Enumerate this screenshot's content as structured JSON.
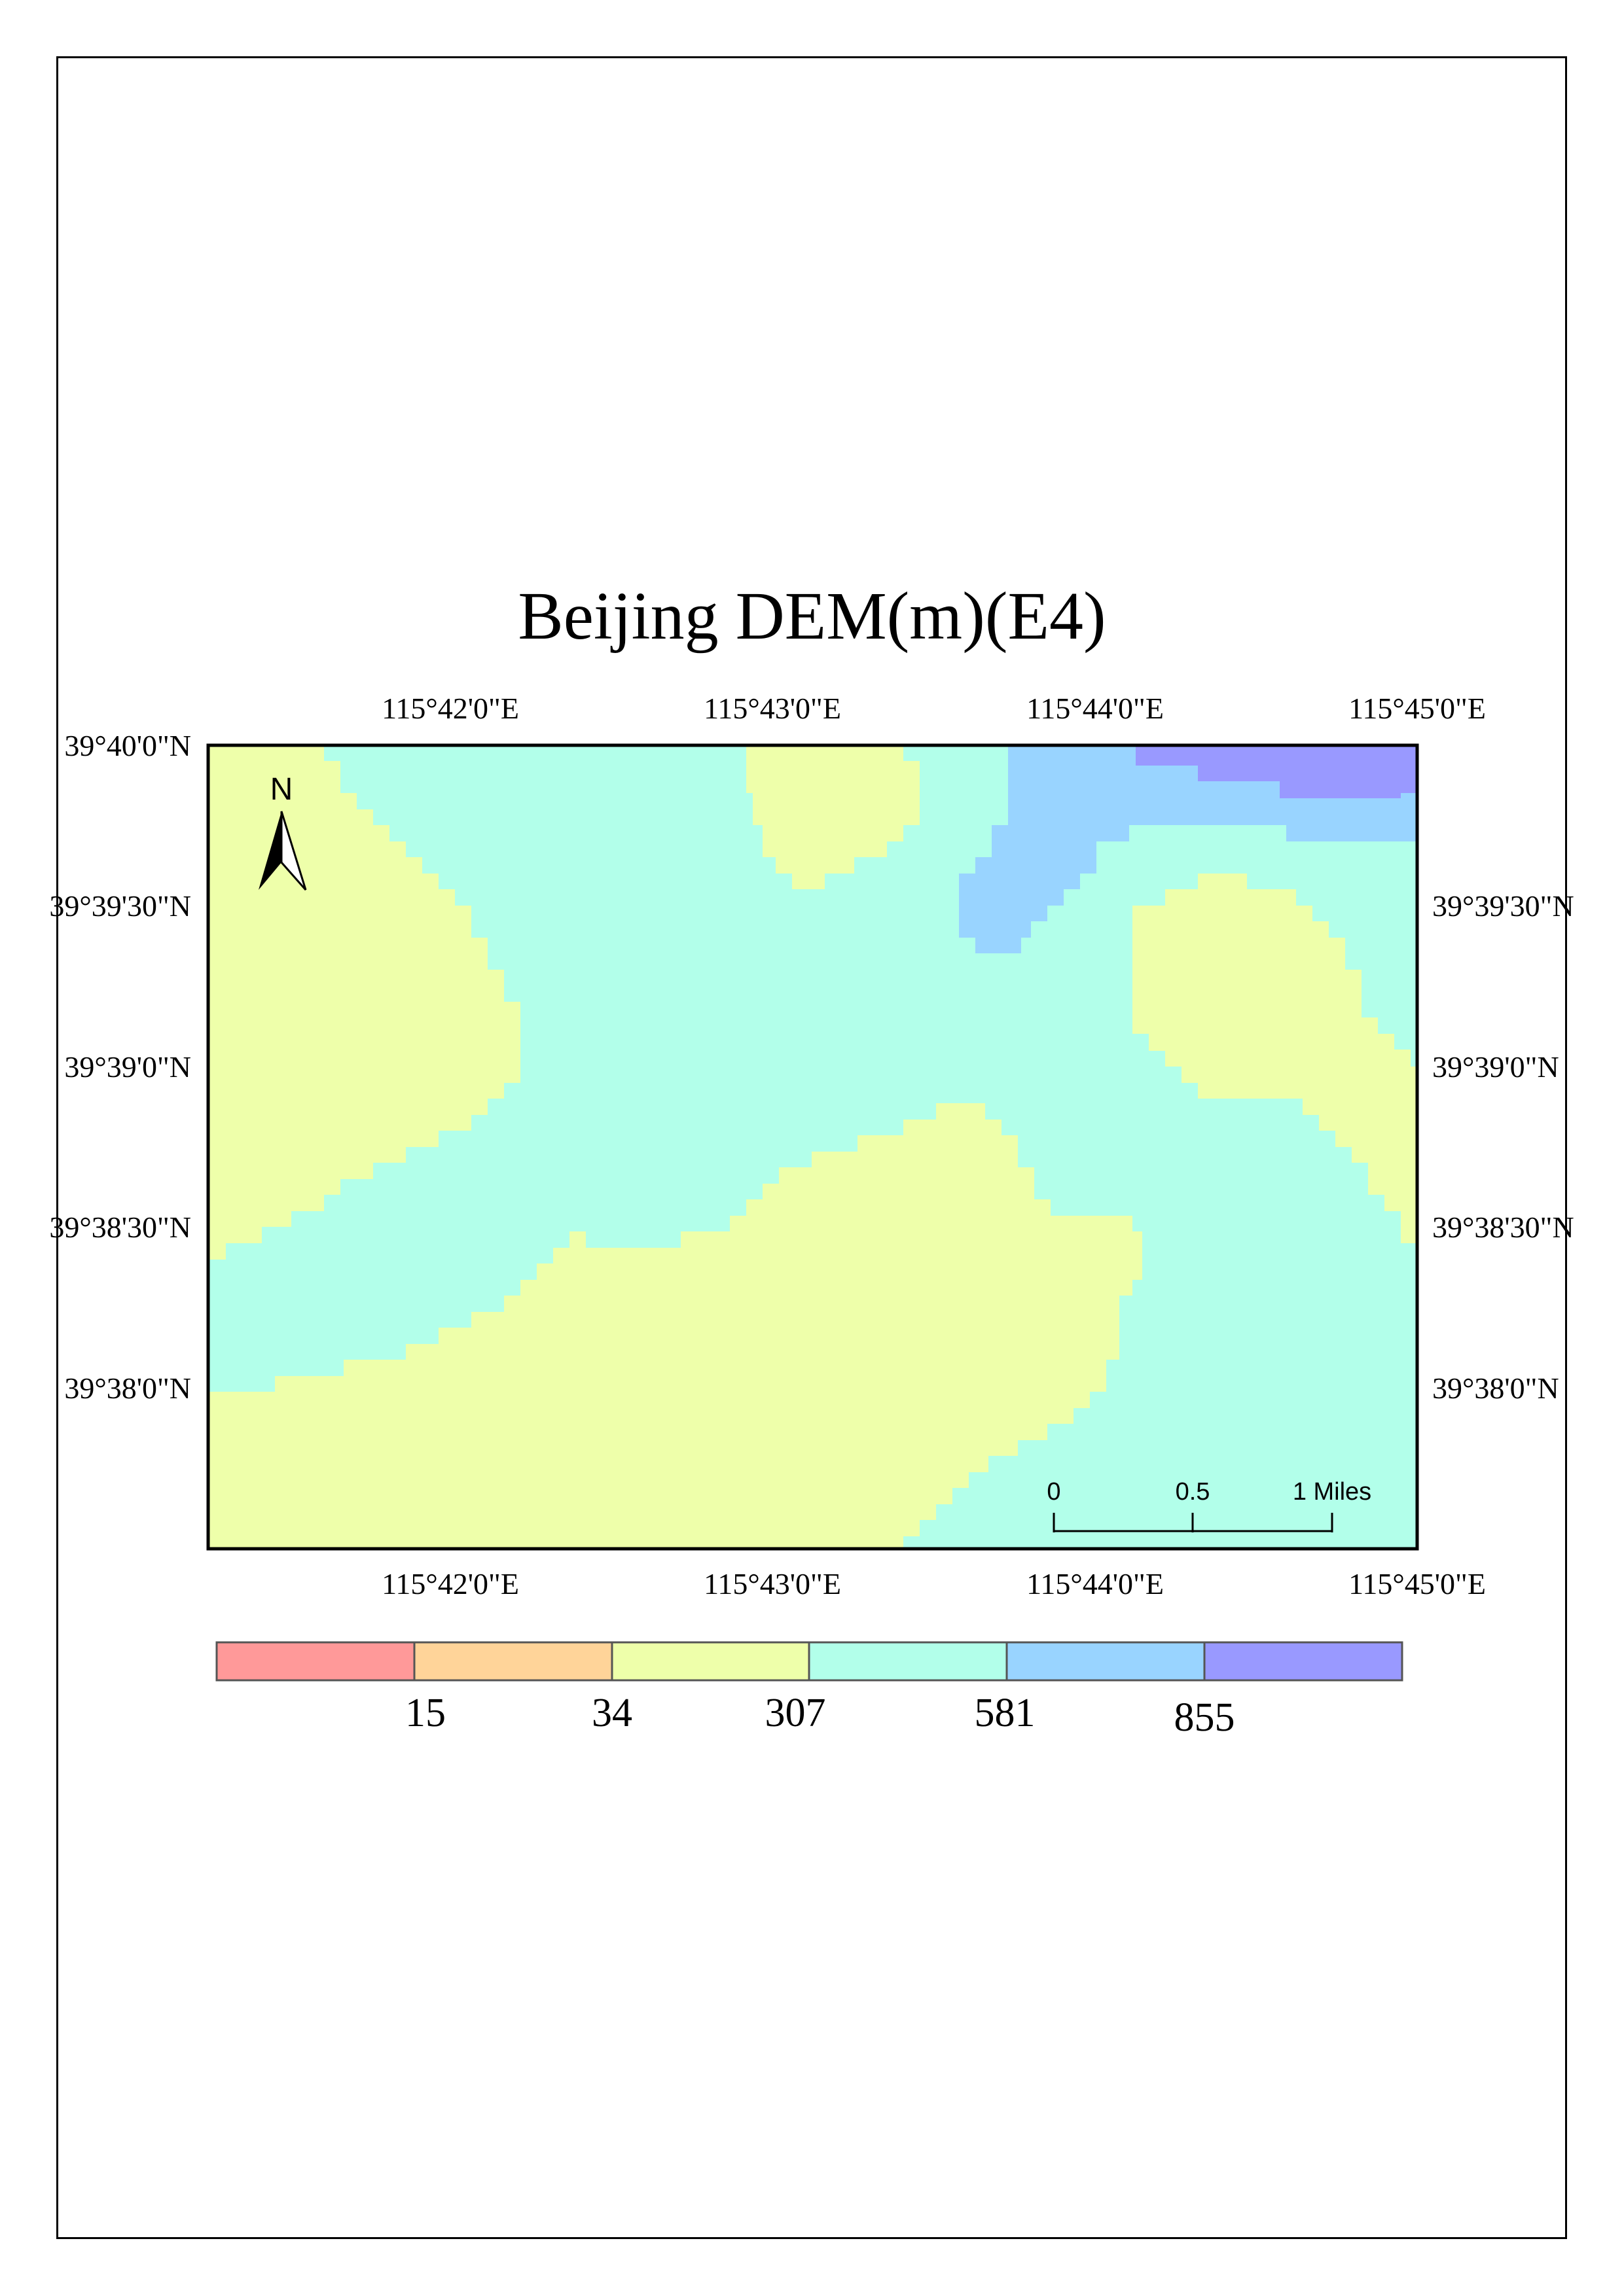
{
  "title": "Beijing DEM(m)(E4)",
  "top_longitudes": [
    "115°42'0\"E",
    "115°43'0\"E",
    "115°44'0\"E",
    "115°45'0\"E"
  ],
  "bottom_longitudes": [
    "115°42'0\"E",
    "115°43'0\"E",
    "115°44'0\"E",
    "115°45'0\"E"
  ],
  "left_latitudes": [
    "39°40'0\"N",
    "39°39'30\"N",
    "39°39'0\"N",
    "39°38'30\"N",
    "39°38'0\"N"
  ],
  "right_latitudes": [
    "39°39'30\"N",
    "39°39'0\"N",
    "39°38'30\"N",
    "39°38'0\"N"
  ],
  "north_arrow": {
    "label": "N",
    "icon": "north-arrow-icon"
  },
  "scale_bar": {
    "labels": [
      "0",
      "0.5",
      "1 Miles"
    ]
  },
  "legend": {
    "colors": [
      "#ff9999",
      "#ffd499",
      "#eeffaa",
      "#b2ffea",
      "#99d4ff",
      "#9999ff"
    ],
    "breaks": [
      "15",
      "34",
      "307",
      "581",
      "855"
    ]
  },
  "zone_colors": {
    "zone_307_581": "#b2ffea",
    "zone_34_307": "#eeffaa",
    "zone_581_855": "#99d4ff",
    "zone_855_plus": "#9999ff"
  }
}
